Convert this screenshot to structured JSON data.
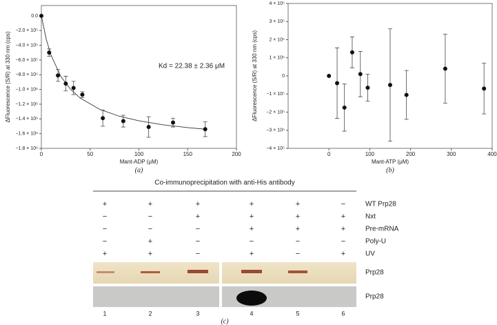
{
  "chart_data": [
    {
      "type": "scatter",
      "caption": "(a)",
      "xlabel": "Mant-ADP (μM)",
      "ylabel": "ΔFluorescence (S/R) at 330 nm (cps)",
      "annotation": "Kd = 22.38 ± 2.36 μM",
      "x": [
        0,
        8,
        17,
        25,
        33,
        42,
        63,
        84,
        110,
        135,
        168
      ],
      "values": [
        0,
        -500000,
        -810000,
        -920000,
        -980000,
        -1070000,
        -1390000,
        -1430000,
        -1510000,
        -1450000,
        -1540000
      ],
      "errors": [
        0,
        50000,
        80000,
        100000,
        90000,
        40000,
        110000,
        80000,
        140000,
        60000,
        100000
      ],
      "fit": {
        "x": [
          0,
          5,
          10,
          20,
          30,
          40,
          60,
          80,
          100,
          125,
          150,
          170
        ],
        "values": [
          0,
          -319000,
          -539000,
          -824000,
          -999000,
          -1119000,
          -1271000,
          -1364000,
          -1426000,
          -1480000,
          -1518000,
          -1542000
        ]
      },
      "color": "#111111",
      "xlim": [
        0,
        200
      ],
      "xticks": [
        0,
        50,
        100,
        150,
        200
      ],
      "ylim": [
        -1800000,
        140000
      ],
      "yticks": [
        {
          "value": 0,
          "label": "0.0"
        },
        {
          "value": -200000,
          "label": "−2.0 × 10⁵"
        },
        {
          "value": -400000,
          "label": "−4.0 × 10⁵"
        },
        {
          "value": -600000,
          "label": "−6.0 × 10⁵"
        },
        {
          "value": -800000,
          "label": "−8.0 × 10⁵"
        },
        {
          "value": -1000000,
          "label": "−1.0 × 10⁶"
        },
        {
          "value": -1200000,
          "label": "−1.2 × 10⁶"
        },
        {
          "value": -1400000,
          "label": "−1.4 × 10⁶"
        },
        {
          "value": -1600000,
          "label": "−1.6 × 10⁶"
        },
        {
          "value": -1800000,
          "label": "−1.8 × 10⁶"
        }
      ]
    },
    {
      "type": "scatter",
      "caption": "(b)",
      "xlabel": "Mant-ATP (μM)",
      "ylabel": "ΔFluorescence (S/R) at 330 nm (cps)",
      "x": [
        0,
        20,
        38,
        57,
        77,
        95,
        150,
        190,
        285,
        380
      ],
      "values": [
        0,
        -40000,
        -175000,
        130000,
        10000,
        -65000,
        -50000,
        -105000,
        40000,
        -70000
      ],
      "errors": [
        0,
        195000,
        130000,
        85000,
        125000,
        75000,
        310000,
        135000,
        190000,
        140000
      ],
      "color": "#111111",
      "xlim": [
        -100,
        400
      ],
      "xticks": [
        0,
        100,
        200,
        300,
        400
      ],
      "ylim": [
        -400000,
        400000
      ],
      "yticks": [
        {
          "value": 400000,
          "label": "4 × 10⁵"
        },
        {
          "value": 300000,
          "label": "3 × 10⁵"
        },
        {
          "value": 200000,
          "label": "2 × 10⁵"
        },
        {
          "value": 100000,
          "label": "1 × 10⁵"
        },
        0,
        {
          "value": -100000,
          "label": "−1 × 10⁵"
        },
        {
          "value": -200000,
          "label": "−2 × 10⁵"
        },
        {
          "value": -300000,
          "label": "−3 × 10⁵"
        },
        {
          "value": -400000,
          "label": "−4 × 10⁵"
        }
      ]
    }
  ],
  "gel": {
    "title": "Co-immunoprecipitation with anti-His antibody",
    "rows": [
      {
        "label": "WT Prp28",
        "marks": [
          "+",
          "+",
          "+",
          "+",
          "+",
          "−"
        ]
      },
      {
        "label": "Nxt",
        "marks": [
          "−",
          "−",
          "+",
          "+",
          "+",
          "+"
        ]
      },
      {
        "label": "Pre-mRNA",
        "marks": [
          "−",
          "−",
          "−",
          "+",
          "+",
          "+"
        ]
      },
      {
        "label": "Poly-U",
        "marks": [
          "−",
          "+",
          "−",
          "−",
          "−",
          "−"
        ]
      },
      {
        "label": "UV",
        "marks": [
          "+",
          "+",
          "−",
          "+",
          "−",
          "+"
        ]
      }
    ],
    "band_labels": [
      "Prp28",
      "Prp28"
    ],
    "lanes": [
      1,
      2,
      3,
      4,
      5,
      6
    ],
    "caption": "(c)"
  }
}
